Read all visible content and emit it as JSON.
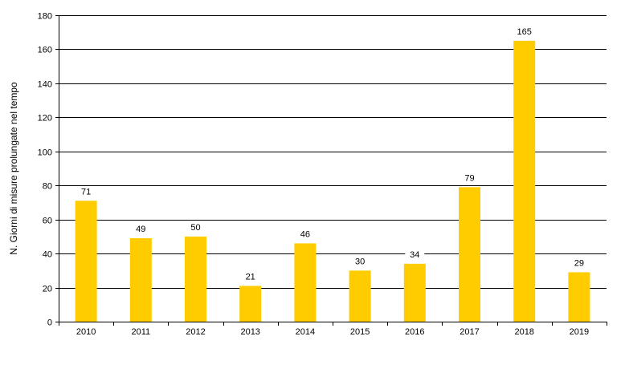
{
  "chart_data": {
    "type": "bar",
    "categories": [
      "2010",
      "2011",
      "2012",
      "2013",
      "2014",
      "2015",
      "2016",
      "2017",
      "2018",
      "2019"
    ],
    "series": [
      {
        "values": [
          71,
          49,
          50,
          21,
          46,
          30,
          34,
          79,
          165,
          29
        ]
      }
    ],
    "data_labels": [
      "71",
      "49",
      "50",
      "21",
      "46",
      "30",
      "34",
      "79",
      "165",
      "29"
    ],
    "title": "",
    "xlabel": "",
    "ylabel": "N. Giorni di misure prolungate  nel tempo",
    "ylim": [
      0,
      180
    ],
    "yticks": [
      0,
      20,
      40,
      60,
      80,
      100,
      120,
      140,
      160,
      180
    ],
    "ytick_labels": [
      "0",
      "20",
      "40",
      "60",
      "80",
      "100",
      "120",
      "140",
      "160",
      "180"
    ],
    "grid": "horizontal",
    "legend": "none",
    "colors": {
      "bar": "#FFCC00",
      "grid": "#000000",
      "axis": "#000000",
      "background": "#FFFFFF"
    }
  }
}
